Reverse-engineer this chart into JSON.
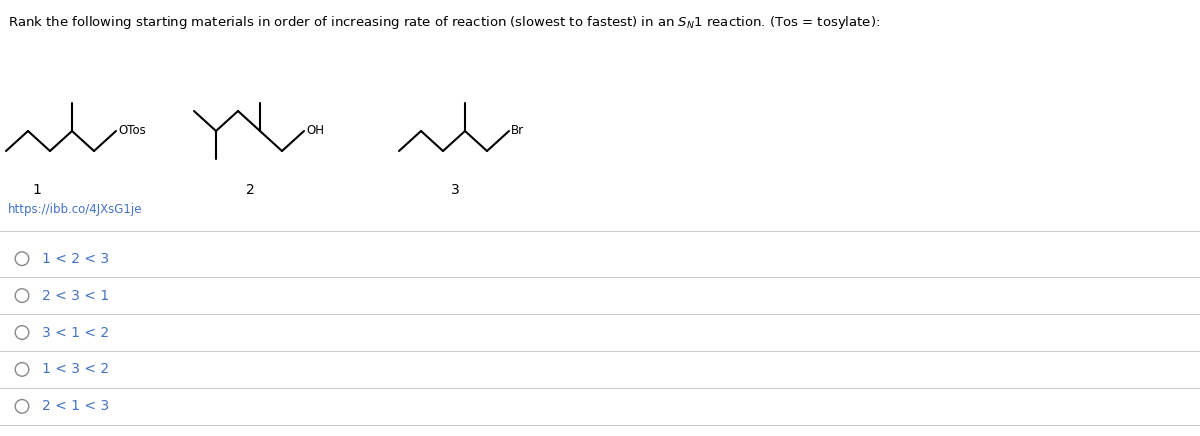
{
  "title": "Rank the following starting materials in order of increasing rate of reaction (slowest to fastest) in an $S_N$1 reaction. (Tos = tosylate):",
  "link_text": "https://ibb.co/4JXsG1je",
  "link_color": "#4472C4",
  "options": [
    "1 < 2 < 3",
    "2 < 3 < 1",
    "3 < 1 < 2",
    "1 < 3 < 2",
    "2 < 1 < 3"
  ],
  "option_color": "#4472C4",
  "divider_color": "#CCCCCC",
  "bg_color": "#FFFFFF",
  "text_color": "#000000",
  "fig_width": 12.0,
  "fig_height": 4.36,
  "dpi": 100
}
